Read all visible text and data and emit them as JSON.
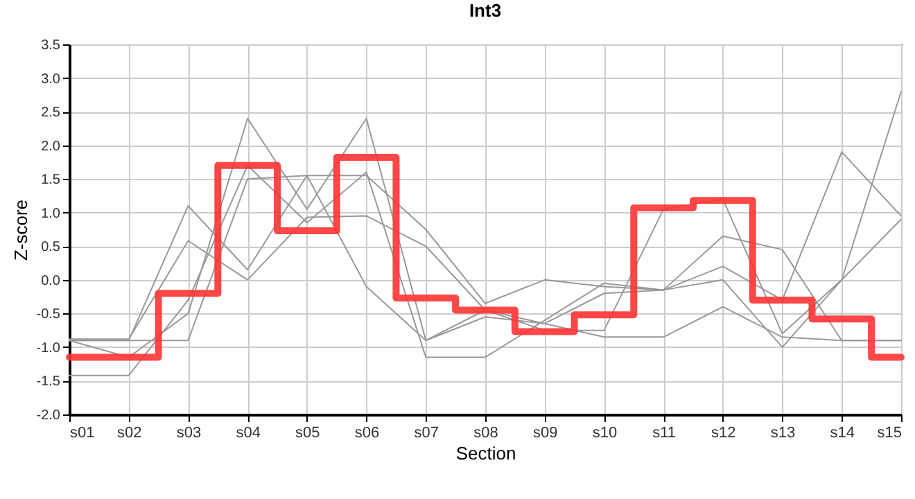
{
  "chart_data": {
    "type": "line",
    "title": "Int3",
    "xlabel": "Section",
    "ylabel": "Z-score",
    "categories": [
      "s01",
      "s02",
      "s03",
      "s04",
      "s05",
      "s06",
      "s07",
      "s08",
      "s09",
      "s10",
      "s11",
      "s12",
      "s13",
      "s14",
      "s15"
    ],
    "ylim": [
      -2.0,
      3.5
    ],
    "yticks": [
      {
        "value": -2,
        "label": "-2.0"
      },
      {
        "value": -1.5,
        "label": "-1.5"
      },
      {
        "value": -1,
        "label": "-1.0"
      },
      {
        "value": -0.5,
        "label": "-0.5"
      },
      {
        "value": 0,
        "label": "0.0"
      },
      {
        "value": 0.5,
        "label": "0.5"
      },
      {
        "value": 1,
        "label": "1.0"
      },
      {
        "value": 1.5,
        "label": "1.5"
      },
      {
        "value": 2,
        "label": "2.0"
      },
      {
        "value": 2.5,
        "label": "2.5"
      },
      {
        "value": 3,
        "label": "3.0"
      },
      {
        "value": 3.5,
        "label": "3.5"
      }
    ],
    "grid": true,
    "series": [
      {
        "color": "#999999",
        "values": [
          -0.9,
          -0.9,
          1.1,
          0.15,
          1.55,
          -0.1,
          -0.9,
          -0.55,
          -0.65,
          -0.85,
          -0.85,
          -0.4,
          -0.85,
          -0.9,
          -0.9
        ]
      },
      {
        "color": "#999999",
        "values": [
          -0.88,
          -0.88,
          0.58,
          0.0,
          0.93,
          0.95,
          0.5,
          -0.45,
          -0.65,
          -0.2,
          -0.15,
          0.65,
          0.45,
          -0.9,
          -0.9
        ]
      },
      {
        "color": "#999999",
        "values": [
          -1.42,
          -1.42,
          -0.3,
          1.7,
          0.85,
          1.6,
          -1.15,
          -1.15,
          -0.6,
          -0.05,
          -0.15,
          0.0,
          -1.0,
          0.0,
          2.8
        ]
      },
      {
        "color": "#999999",
        "values": [
          -0.9,
          -0.9,
          -0.9,
          1.5,
          1.55,
          1.55,
          0.75,
          -0.35,
          0.0,
          -0.1,
          -0.15,
          0.2,
          -0.3,
          1.9,
          0.95
        ]
      },
      {
        "color": "#999999",
        "values": [
          -0.9,
          -1.15,
          -0.5,
          2.4,
          1.05,
          2.4,
          -0.9,
          -0.45,
          -0.75,
          -0.75,
          1.05,
          1.2,
          -0.8,
          0.0,
          0.9
        ]
      },
      {
        "type": "step",
        "color": "#ff3333",
        "values": [
          -1.15,
          -1.15,
          -0.2,
          1.7,
          0.73,
          1.82,
          -0.27,
          -0.45,
          -0.77,
          -0.52,
          1.07,
          1.18,
          -0.3,
          -0.58,
          -1.15
        ]
      }
    ]
  }
}
